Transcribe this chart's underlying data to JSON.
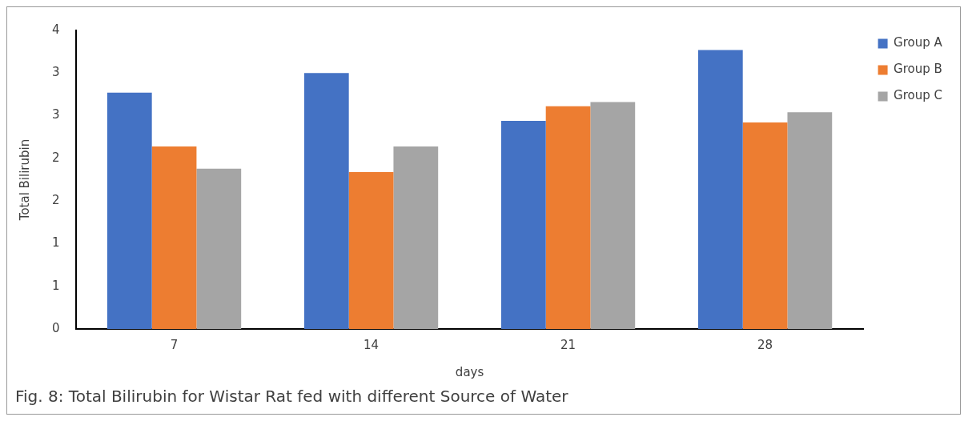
{
  "chart_data": {
    "type": "bar",
    "categories": [
      "7",
      "14",
      "21",
      "28"
    ],
    "series": [
      {
        "name": "Group A",
        "color": "#4472c4",
        "values": [
          2.77,
          3.0,
          2.44,
          3.27
        ]
      },
      {
        "name": "Group B",
        "color": "#ed7d31",
        "values": [
          2.14,
          1.84,
          2.61,
          2.42
        ]
      },
      {
        "name": "Group C",
        "color": "#a5a5a5",
        "values": [
          1.88,
          2.14,
          2.66,
          2.54
        ]
      }
    ],
    "xlabel": "days",
    "ylabel": "Total Bilirubin",
    "ylim": [
      0,
      3.5
    ],
    "yticks": [
      0,
      {
        "value": 0.5,
        "label": "1"
      },
      {
        "value": 1,
        "label": "1"
      },
      {
        "value": 1.5,
        "label": "2"
      },
      {
        "value": 2,
        "label": "2"
      },
      {
        "value": 2.5,
        "label": "3"
      },
      {
        "value": 3,
        "label": "3"
      },
      {
        "value": 3.5,
        "label": "4"
      }
    ],
    "grid": false,
    "legend": "top right",
    "annotations": [
      "Fig. 8: Total Bilirubin for Wistar Rat fed with different Source of Water"
    ]
  }
}
